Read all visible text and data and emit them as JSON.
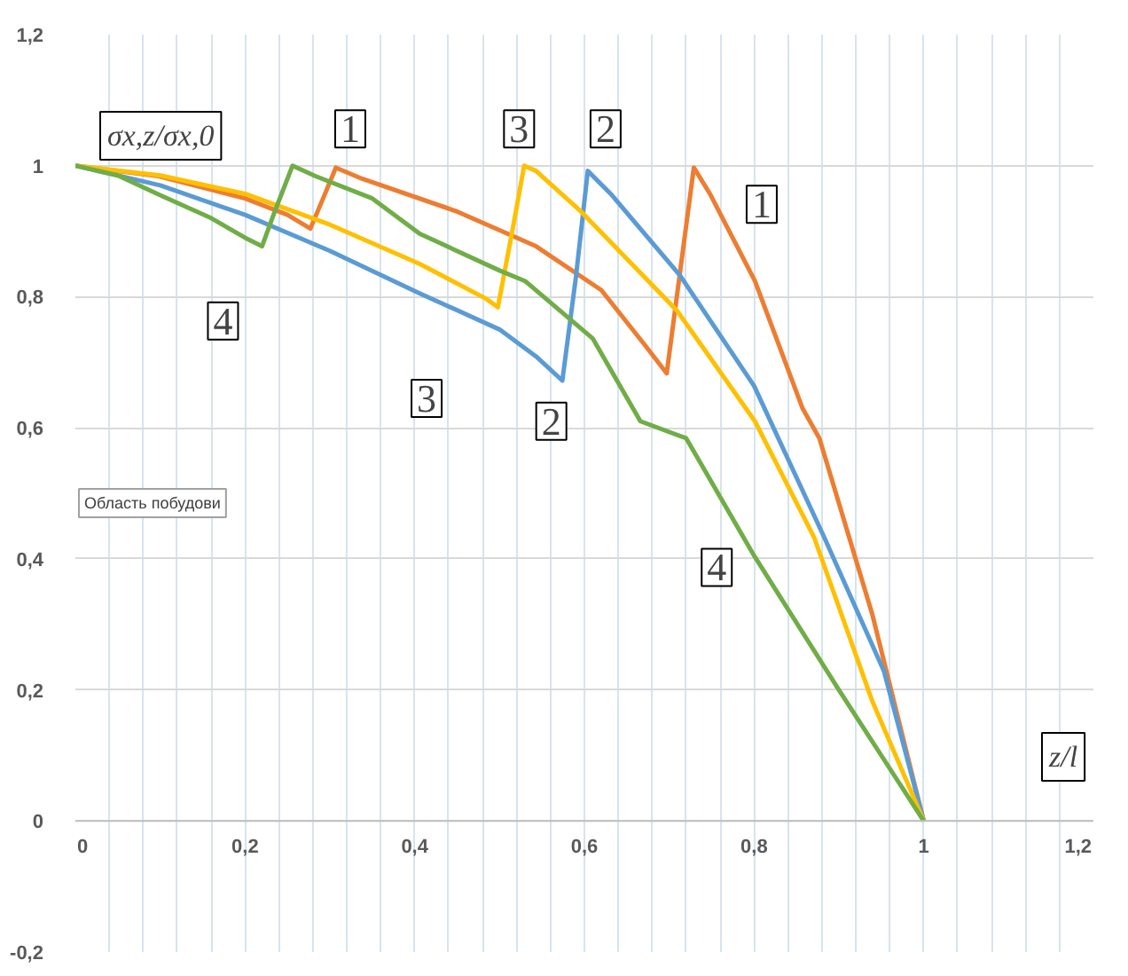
{
  "chart_data": {
    "type": "line",
    "ylabel": "σx,z/σx,0",
    "xlabel": "z/l",
    "xlim": [
      0,
      1.2
    ],
    "ylim": [
      -0.2,
      1.2
    ],
    "xticks": [
      0,
      {
        "value": 0.2,
        "label": "0,2"
      },
      {
        "value": 0.4,
        "label": "0,4"
      },
      {
        "value": 0.6,
        "label": "0,6"
      },
      {
        "value": 0.8,
        "label": "0,8"
      },
      1,
      {
        "value": 1.2,
        "label": "1,2"
      }
    ],
    "yticks": [
      {
        "value": -0.2,
        "label": "-0,2"
      },
      0,
      {
        "value": 0.2,
        "label": "0,2"
      },
      {
        "value": 0.4,
        "label": "0,4"
      },
      {
        "value": 0.6,
        "label": "0,6"
      },
      {
        "value": 0.8,
        "label": "0,8"
      },
      1,
      {
        "value": 1.2,
        "label": "1,2"
      }
    ],
    "grid": true,
    "marker": "none",
    "line_style": "solid",
    "series": [
      {
        "color": "#ed7d31",
        "x": [
          0,
          0.098,
          0.2,
          0.25,
          0.277,
          0.292,
          0.307,
          0.338,
          0.45,
          0.543,
          0.62,
          0.672,
          0.697,
          0.713,
          0.729,
          0.748,
          0.801,
          0.857,
          0.877,
          0.939,
          1
        ],
        "values": [
          1,
          0.984,
          0.95,
          0.925,
          0.904,
          0.95,
          0.997,
          0.98,
          0.93,
          0.877,
          0.81,
          0.725,
          0.683,
          0.84,
          0.997,
          0.957,
          0.824,
          0.63,
          0.584,
          0.317,
          0
        ]
      },
      {
        "color": "#5b9bd5",
        "x": [
          0,
          0.1,
          0.2,
          0.3,
          0.406,
          0.5,
          0.543,
          0.574,
          0.59,
          0.604,
          0.631,
          0.713,
          0.8,
          0.883,
          0.953,
          1
        ],
        "values": [
          1,
          0.97,
          0.925,
          0.87,
          0.805,
          0.75,
          0.709,
          0.672,
          0.83,
          0.992,
          0.957,
          0.832,
          0.664,
          0.432,
          0.229,
          0
        ]
      },
      {
        "color": "#ffc000",
        "x": [
          0,
          0.1,
          0.2,
          0.3,
          0.406,
          0.484,
          0.498,
          0.515,
          0.529,
          0.543,
          0.596,
          0.709,
          0.801,
          0.871,
          0.939,
          1
        ],
        "values": [
          1,
          0.985,
          0.957,
          0.91,
          0.85,
          0.797,
          0.784,
          0.9,
          1.0,
          0.992,
          0.93,
          0.779,
          0.61,
          0.432,
          0.184,
          0
        ]
      },
      {
        "color": "#70ad47",
        "x": [
          0,
          0.05,
          0.1,
          0.16,
          0.2,
          0.22,
          0.235,
          0.256,
          0.283,
          0.35,
          0.406,
          0.5,
          0.53,
          0.61,
          0.666,
          0.72,
          0.8,
          0.9,
          1
        ],
        "values": [
          1,
          0.985,
          0.955,
          0.92,
          0.89,
          0.877,
          0.93,
          1.0,
          0.984,
          0.95,
          0.896,
          0.84,
          0.824,
          0.736,
          0.61,
          0.584,
          0.405,
          0.2,
          0
        ]
      }
    ],
    "annotations": [
      {
        "text": "1",
        "x": 0.324,
        "y": 1.056
      },
      {
        "text": "3",
        "x": 0.523,
        "y": 1.056
      },
      {
        "text": "2",
        "x": 0.625,
        "y": 1.056
      },
      {
        "text": "1",
        "x": 0.809,
        "y": 0.941
      },
      {
        "text": "4",
        "x": 0.174,
        "y": 0.763
      },
      {
        "text": "3",
        "x": 0.414,
        "y": 0.645
      },
      {
        "text": "2",
        "x": 0.561,
        "y": 0.61
      },
      {
        "text": "4",
        "x": 0.756,
        "y": 0.387
      },
      "Область побудови"
    ]
  }
}
